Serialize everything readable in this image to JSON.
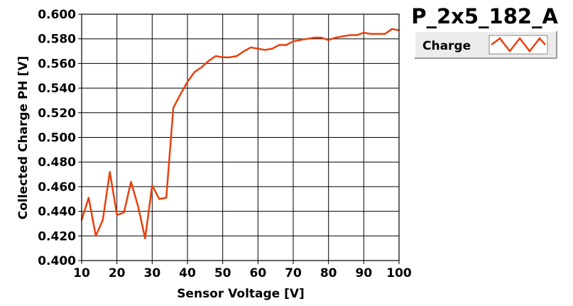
{
  "chart_data": {
    "type": "line",
    "title": "P_2x5_182_A",
    "xlabel": "Sensor Voltage [V]",
    "ylabel": "Collected Charge PH [V]",
    "xlim": [
      10,
      100
    ],
    "ylim": [
      0.4,
      0.6
    ],
    "x_ticks": [
      "10",
      "20",
      "30",
      "40",
      "50",
      "60",
      "70",
      "80",
      "90",
      "100"
    ],
    "y_ticks": [
      "0.400",
      "0.420",
      "0.440",
      "0.460",
      "0.480",
      "0.500",
      "0.520",
      "0.540",
      "0.560",
      "0.580",
      "0.600"
    ],
    "grid": true,
    "legend_position": "top-right",
    "series": [
      {
        "name": "Charge",
        "color": "#e8400c",
        "x": [
          10,
          12,
          14,
          16,
          18,
          20,
          22,
          24,
          26,
          28,
          30,
          32,
          34,
          36,
          38,
          40,
          42,
          44,
          46,
          48,
          50,
          52,
          54,
          56,
          58,
          60,
          62,
          64,
          66,
          68,
          70,
          72,
          74,
          76,
          78,
          80,
          82,
          84,
          86,
          88,
          90,
          92,
          94,
          96,
          98,
          100
        ],
        "y": [
          0.433,
          0.451,
          0.42,
          0.433,
          0.472,
          0.437,
          0.439,
          0.464,
          0.444,
          0.418,
          0.461,
          0.45,
          0.451,
          0.524,
          0.535,
          0.545,
          0.553,
          0.557,
          0.562,
          0.566,
          0.565,
          0.565,
          0.566,
          0.57,
          0.573,
          0.572,
          0.571,
          0.572,
          0.575,
          0.575,
          0.578,
          0.579,
          0.58,
          0.581,
          0.581,
          0.579,
          0.581,
          0.582,
          0.583,
          0.583,
          0.585,
          0.584,
          0.584,
          0.584,
          0.588,
          0.587
        ]
      }
    ]
  }
}
